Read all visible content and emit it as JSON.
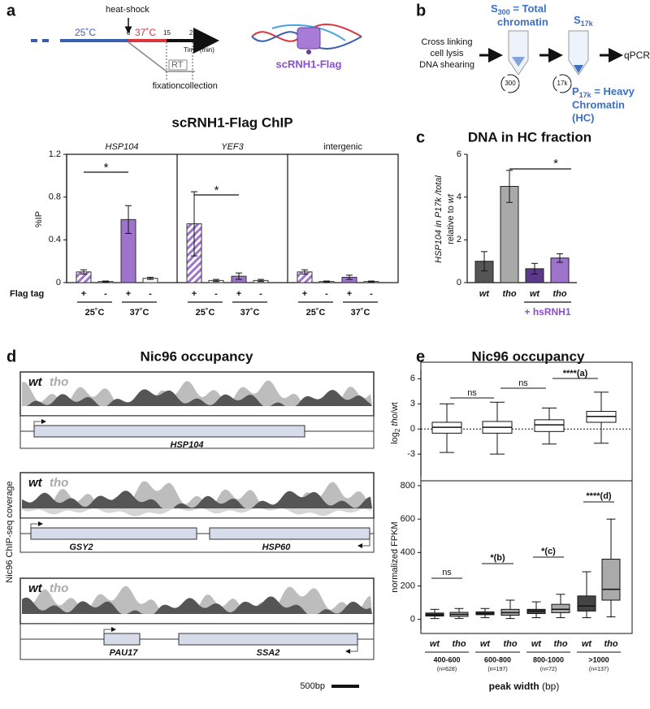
{
  "figure": {
    "panel_labels": [
      "a",
      "b",
      "c",
      "d",
      "e"
    ],
    "schematic_a": {
      "heat_shock": "heat-shock",
      "temp_25": "25˚C",
      "temp_37": "37˚C",
      "t0": "0",
      "t15": "15",
      "t25": "25",
      "time_label": "Time (min)",
      "rt": "RT",
      "fixation": "fixation",
      "collection": "collection",
      "protein": "scRNH1-Flag"
    },
    "schematic_b": {
      "s300": "S",
      "s300_sub": "300",
      "s300_rest": " = Total",
      "s300_line2": "chromatin",
      "s17k": "S",
      "s17k_sub": "17k",
      "steps": [
        "Cross linking",
        "cell lysis",
        "DNA shearing"
      ],
      "spin1": "300",
      "spin2": "17k",
      "qpcr": "qPCR",
      "p17k": "P",
      "p17k_sub": "17k",
      "p17k_rest": " = Heavy",
      "p17k_line2": "Chromatin",
      "p17k_line3": "(HC)"
    },
    "panel_d": {
      "title": "Nic96 occupancy",
      "ylabel": "Nic96 ChIP-seq coverage",
      "scale": "500bp",
      "tracks": [
        {
          "labels": [
            "wt",
            "tho"
          ],
          "genes": [
            "HSP104"
          ]
        },
        {
          "labels": [
            "wt",
            "tho"
          ],
          "genes": [
            "GSY2",
            "HSP60"
          ]
        },
        {
          "labels": [
            "wt",
            "tho"
          ],
          "genes": [
            "PAU17",
            "SSA2"
          ]
        }
      ]
    }
  },
  "chart_data": [
    {
      "type": "facet_bar",
      "title": "scRNH1-Flag ChIP",
      "ylabel": "%IP",
      "ylim": [
        0,
        1.2
      ],
      "yticks": [
        0,
        0.4,
        0.8,
        1.2
      ],
      "facets": [
        "HSP104",
        "YEF3",
        "intergenic"
      ],
      "facet_italic": [
        true,
        true,
        false
      ],
      "xlabel": "Flag tag",
      "categories": [
        "+",
        "-",
        "+",
        "-"
      ],
      "temperatures": [
        "25˚C",
        "37˚C"
      ],
      "colors": [
        "#9d73cc",
        "#ffffff",
        "#9d73cc",
        "#ffffff"
      ],
      "hatched": [
        true,
        false,
        false,
        false
      ],
      "values": [
        [
          0.1,
          0.01,
          0.59,
          0.04
        ],
        [
          0.55,
          0.02,
          0.06,
          0.02
        ],
        [
          0.1,
          0.01,
          0.05,
          0.01
        ]
      ],
      "errors": [
        [
          0.02,
          0.005,
          0.13,
          0.01
        ],
        [
          0.3,
          0.01,
          0.03,
          0.01
        ],
        [
          0.02,
          0.005,
          0.02,
          0.005
        ]
      ],
      "significance": [
        "*",
        "*"
      ]
    },
    {
      "type": "bar",
      "title": "DNA in HC fraction",
      "ylabel": [
        "HSP104 in P17k /total",
        "relative to ",
        "wt"
      ],
      "ylim": [
        0,
        6
      ],
      "yticks": [
        0,
        2,
        4,
        6
      ],
      "categories": [
        "wt",
        "tho",
        "wt",
        "tho"
      ],
      "values": [
        1.0,
        4.5,
        0.65,
        1.15
      ],
      "errors": [
        0.45,
        0.75,
        0.25,
        0.2
      ],
      "colors": [
        "#555555",
        "#a9a9a9",
        "#5b3a8a",
        "#9d73cc"
      ],
      "group_label": "+ hsRNH1",
      "significance": "*"
    },
    {
      "type": "box",
      "title": "Nic96 occupancy",
      "ylabel": [
        "log",
        "2",
        " tho",
        "/wt"
      ],
      "ylim": [
        -5.6,
        7
      ],
      "yticks": [
        -3,
        0,
        3,
        6
      ],
      "boxes": [
        [
          -2.8,
          -0.5,
          0.2,
          0.8,
          3.0
        ],
        [
          -3.0,
          -0.5,
          0.2,
          0.9,
          3.2
        ],
        [
          -1.8,
          -0.3,
          0.5,
          1.1,
          2.5
        ],
        [
          -1.7,
          0.8,
          1.5,
          2.1,
          4.4
        ]
      ],
      "annotations": [
        "ns",
        "ns",
        "****(a)"
      ]
    },
    {
      "type": "box",
      "ylabel": "normalized FPKM",
      "ylim": [
        -60,
        800
      ],
      "yticks": [
        0,
        200,
        400,
        600,
        800
      ],
      "categories": [
        "wt",
        "tho",
        "wt",
        "tho",
        "wt",
        "tho",
        "wt",
        "tho"
      ],
      "colors": [
        "#444444",
        "#aaaaaa"
      ],
      "groups": [
        "400-600",
        "600-800",
        "800-1000",
        ">1000"
      ],
      "group_n": [
        "(n=628)",
        "(n=197)",
        "(n=72)",
        "(n=137)"
      ],
      "xlabel": [
        "peak width",
        " (bp)"
      ],
      "boxes": [
        [
          5,
          20,
          28,
          38,
          60
        ],
        [
          5,
          18,
          30,
          42,
          65
        ],
        [
          10,
          28,
          35,
          45,
          65
        ],
        [
          5,
          25,
          40,
          60,
          115
        ],
        [
          10,
          35,
          50,
          60,
          105
        ],
        [
          10,
          40,
          60,
          90,
          150
        ],
        [
          10,
          50,
          80,
          140,
          285
        ],
        [
          15,
          115,
          180,
          360,
          600
        ]
      ],
      "annotations": [
        "ns",
        "*(b)",
        "*(c)",
        "****(d)"
      ]
    }
  ]
}
